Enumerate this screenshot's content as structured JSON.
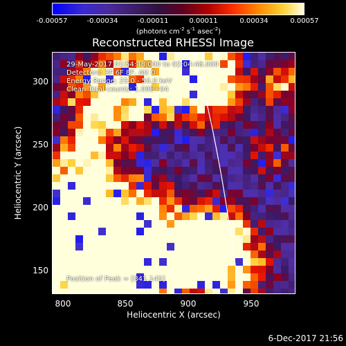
{
  "colorbar": {
    "ticks": [
      "-0.00057",
      "-0.00034",
      "-0.00011",
      "0.00011",
      "0.00034",
      "0.00057"
    ],
    "unit_main": "(photons cm",
    "unit_exp1": "-2",
    "unit_mid1": " s",
    "unit_exp2": "-1",
    "unit_mid2": " asec",
    "unit_exp3": "-2",
    "unit_end": ")"
  },
  "title": "Reconstructed RHESSI Image",
  "info": {
    "time_range": "29-May-2017 01:54:48.000 to 02:04:48.000",
    "detectors": "Detectors: 3F 6F 8F, Att 0",
    "energy": "Energy Range: 25.0 - 50.0 keV",
    "method": "Clean      Total counts: 1.09E+04",
    "position": "Position of Peak = [841,145]"
  },
  "axes": {
    "xlabel": "Heliocentric X (arcsec)",
    "ylabel": "Heliocentric Y (arcsec)",
    "xticks": [
      "800",
      "850",
      "900",
      "950"
    ],
    "yticks": [
      "300",
      "250",
      "200",
      "150"
    ]
  },
  "timestamp": "6-Dec-2017 21:56"
}
